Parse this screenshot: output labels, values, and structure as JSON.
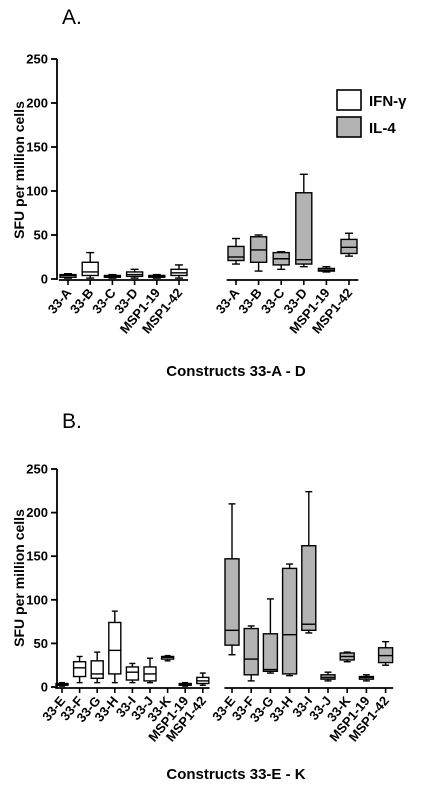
{
  "chart_data": [
    {
      "type": "box",
      "panel_label": "A.",
      "ylabel": "SFU per million cells",
      "xlabel": "Constructs 33-A - D",
      "ylim": [
        0,
        250
      ],
      "yticks": [
        0,
        50,
        100,
        150,
        200,
        250
      ],
      "legend": {
        "position": "top-right",
        "entries": [
          "IFN-γ",
          "IL-4"
        ]
      },
      "series": [
        {
          "name": "IFN-γ",
          "color": "#ffffff",
          "categories": [
            "33-A",
            "33-B",
            "33-C",
            "33-D",
            "MSP1-19",
            "MSP1-42"
          ],
          "boxes": [
            {
              "min": 1,
              "q1": 2,
              "median": 4,
              "q3": 5,
              "max": 6
            },
            {
              "min": 1,
              "q1": 4,
              "median": 8,
              "q3": 19,
              "max": 30
            },
            {
              "min": 1,
              "q1": 2,
              "median": 3,
              "q3": 4,
              "max": 5
            },
            {
              "min": 1,
              "q1": 3,
              "median": 5,
              "q3": 8,
              "max": 11
            },
            {
              "min": 1,
              "q1": 2,
              "median": 3,
              "q3": 4,
              "max": 5
            },
            {
              "min": 1,
              "q1": 4,
              "median": 7,
              "q3": 11,
              "max": 16
            }
          ]
        },
        {
          "name": "IL-4",
          "color": "#b3b3b3",
          "categories": [
            "33-A",
            "33-B",
            "33-C",
            "33-D",
            "MSP1-19",
            "MSP1-42"
          ],
          "boxes": [
            {
              "min": 17,
              "q1": 21,
              "median": 25,
              "q3": 37,
              "max": 46
            },
            {
              "min": 9,
              "q1": 19,
              "median": 33,
              "q3": 48,
              "max": 50
            },
            {
              "min": 11,
              "q1": 16,
              "median": 23,
              "q3": 30,
              "max": 31
            },
            {
              "min": 14,
              "q1": 17,
              "median": 22,
              "q3": 98,
              "max": 119
            },
            {
              "min": 8,
              "q1": 9,
              "median": 10,
              "q3": 12,
              "max": 14
            },
            {
              "min": 26,
              "q1": 29,
              "median": 36,
              "q3": 45,
              "max": 52
            }
          ]
        }
      ]
    },
    {
      "type": "box",
      "panel_label": "B.",
      "ylabel": "SFU per million cells",
      "xlabel": "Constructs 33-E - K",
      "ylim": [
        0,
        250
      ],
      "yticks": [
        0,
        50,
        100,
        150,
        200,
        250
      ],
      "series": [
        {
          "name": "IFN-γ",
          "color": "#ffffff",
          "categories": [
            "33-E",
            "33-F",
            "33-G",
            "33-H",
            "33-I",
            "33-J",
            "33-K",
            "MSP1-19",
            "MSP1-42"
          ],
          "boxes": [
            {
              "min": 1,
              "q1": 2,
              "median": 3,
              "q3": 4,
              "max": 5
            },
            {
              "min": 5,
              "q1": 12,
              "median": 22,
              "q3": 29,
              "max": 35
            },
            {
              "min": 5,
              "q1": 10,
              "median": 15,
              "q3": 30,
              "max": 40
            },
            {
              "min": 5,
              "q1": 15,
              "median": 42,
              "q3": 74,
              "max": 87
            },
            {
              "min": 5,
              "q1": 8,
              "median": 17,
              "q3": 23,
              "max": 27
            },
            {
              "min": 5,
              "q1": 7,
              "median": 15,
              "q3": 23,
              "max": 33
            },
            {
              "min": 30,
              "q1": 32,
              "median": 34,
              "q3": 35,
              "max": 36
            },
            {
              "min": 1,
              "q1": 2,
              "median": 3,
              "q3": 4,
              "max": 5
            },
            {
              "min": 2,
              "q1": 4,
              "median": 7,
              "q3": 11,
              "max": 16
            }
          ]
        },
        {
          "name": "IL-4",
          "color": "#b3b3b3",
          "categories": [
            "33-E",
            "33-F",
            "33-G",
            "33-H",
            "33-I",
            "33-J",
            "33-K",
            "MSP1-19",
            "MSP1-42"
          ],
          "boxes": [
            {
              "min": 37,
              "q1": 48,
              "median": 65,
              "q3": 147,
              "max": 210
            },
            {
              "min": 7,
              "q1": 14,
              "median": 32,
              "q3": 67,
              "max": 70
            },
            {
              "min": 16,
              "q1": 18,
              "median": 20,
              "q3": 61,
              "max": 101
            },
            {
              "min": 13,
              "q1": 15,
              "median": 60,
              "q3": 136,
              "max": 141
            },
            {
              "min": 62,
              "q1": 65,
              "median": 72,
              "q3": 162,
              "max": 224
            },
            {
              "min": 7,
              "q1": 9,
              "median": 11,
              "q3": 14,
              "max": 17
            },
            {
              "min": 29,
              "q1": 31,
              "median": 35,
              "q3": 39,
              "max": 40
            },
            {
              "min": 7,
              "q1": 9,
              "median": 11,
              "q3": 12,
              "max": 14
            },
            {
              "min": 25,
              "q1": 28,
              "median": 36,
              "q3": 45,
              "max": 52
            }
          ]
        }
      ]
    }
  ]
}
